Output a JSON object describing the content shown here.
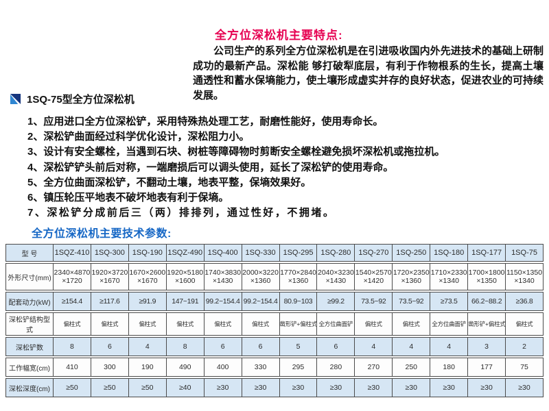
{
  "features": {
    "title": "全方位深松机主要特点:",
    "paragraph": "公司生产的系列全方位深松机是在引进吸收国内外先进技术的基础上研制成功的最新产品。深松能 够打破犁底层，有利于作物根系的生长，提高土壤通透性和蓄水保墒能力，使土壤形成虚实并存的良好状态，促进农业的可持续发展。",
    "items": [
      "1、应用进口全方位深松铲，采用特殊热处理工艺，耐磨性能好，使用寿命长。",
      "2、深松铲曲面经过科学优化设计，深松阻力小。",
      "3、设计有安全螺栓，当遇到石块、树桩等障碍物时剪断安全螺栓避免损坏深松机或拖拉机。",
      "4、深松铲铲头前后对称，一端磨损后可以调头使用，延长了深松铲的使用寿命。",
      "5、全方位曲面深松铲，不翻动土壤，地表平整，保墒效果好。",
      "6、镇压轮压平地表不破坏地表有利于保墒。",
      "7、深松铲分成前后三（两）排排列，通过性好，不拥堵。"
    ]
  },
  "product": {
    "heading": "1SQ-75型全方位深松机"
  },
  "params_section": {
    "title": "全方位深松机主要技术参数:"
  },
  "table": {
    "header_label": "型 号",
    "models": [
      "1SQZ-410",
      "1SQ-300",
      "1SQ-190",
      "1SQZ-490",
      "1SQ-400",
      "1SQ-330",
      "1SQ-295",
      "1SQ-280",
      "1SQ-270",
      "1SQ-250",
      "1SQ-180",
      "1SQ-177",
      "1SQ-75"
    ],
    "rows": [
      {
        "label": "外形尺寸(mm)",
        "values": [
          "2340×4870\n×1720",
          "1920×3720\n×1670",
          "1670×2600\n×1670",
          "1920×5180\n×1600",
          "1740×3830\n×1430",
          "2000×3220\n×1360",
          "1770×2840\n×1360",
          "2040×3230\n×1430",
          "1540×2570\n×1420",
          "1720×2350\n×1360",
          "1710×2330\n×1340",
          "1700×1800\n×1350",
          "1150×1350\n×1340"
        ]
      },
      {
        "label": "配套动力(kW)",
        "values": [
          "≥154.4",
          "≥117.6",
          "≥91.9",
          "147~191",
          "99.2~154.4",
          "99.2~154.4",
          "80.9~103",
          "≥99.2",
          "73.5~92",
          "73.5~92",
          "≥73.5",
          "66.2~88.2",
          "≥36.8"
        ]
      },
      {
        "label": "深松铲结构型式",
        "values": [
          "偏柱式",
          "偏柱式",
          "偏柱式",
          "偏柱式",
          "偏柱式",
          "偏柱式",
          "凿形铲+偏柱式",
          "全方位曲面铲",
          "偏柱式",
          "偏柱式",
          "全方位曲面铲",
          "凿形铲+偏柱式",
          "偏柱式"
        ]
      },
      {
        "label": "深松铲数",
        "values": [
          "8",
          "6",
          "4",
          "8",
          "6",
          "6",
          "5",
          "6",
          "4",
          "4",
          "4",
          "3",
          "2"
        ]
      },
      {
        "label": "工作幅宽(cm)",
        "values": [
          "410",
          "300",
          "190",
          "490",
          "400",
          "330",
          "295",
          "280",
          "270",
          "250",
          "180",
          "177",
          "75"
        ]
      },
      {
        "label": "深松深度(cm)",
        "values": [
          "≥50",
          "≥50",
          "≥50",
          "≥40",
          "≥30",
          "≥30",
          "≥30",
          "≥30",
          "≥30",
          "≥30",
          "≥30",
          "≥30",
          "≥30"
        ]
      }
    ]
  },
  "colors": {
    "feature_title_red": "#e60051",
    "params_title_blue": "#1667c5",
    "table_row_blue": "#d6e6f4",
    "logo_dark_blue": "#15357e",
    "logo_light_blue": "#2f86d2"
  }
}
